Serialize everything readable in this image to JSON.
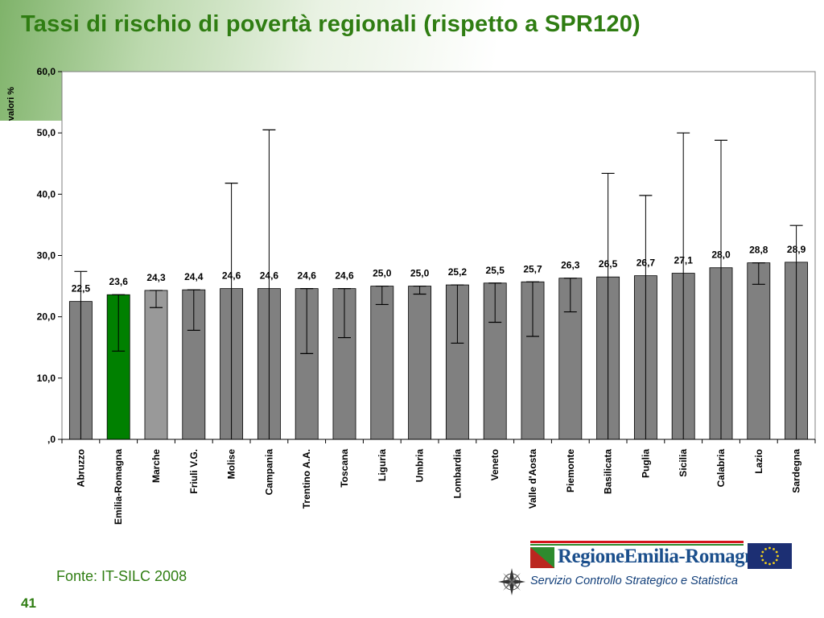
{
  "slide": {
    "title": "Tassi di rischio di povertà regionali (rispetto a SPR120)",
    "source": "Fonte: IT-SILC 2008",
    "page_number": "41",
    "logo_text": "RegioneEmilia-Romagna",
    "service_text": "Servizio Controllo Strategico e Statistica"
  },
  "colors": {
    "bar_default": "#808080",
    "bar_highlight": "#008000",
    "title_green": "#2f7d12"
  },
  "chart_data": {
    "type": "bar",
    "ylabel": "valori %",
    "ylim": [
      0,
      60
    ],
    "yticks": [
      "0",
      "10,0",
      "20,0",
      "30,0",
      "40,0",
      "50,0",
      "60,0"
    ],
    "ytick_labels": [
      ",0",
      "10,0",
      "20,0",
      "30,0",
      "40,0",
      "50,0",
      "60,0"
    ],
    "categories": [
      "Abruzzo",
      "Emilia-Romagna",
      "Marche",
      "Friuli V.G.",
      "Molise",
      "Campania",
      "Trentino A.A.",
      "Toscana",
      "Liguria",
      "Umbria",
      "Lombardia",
      "Veneto",
      "Valle d'Aosta",
      "Piemonte",
      "Basilicata",
      "Puglia",
      "Sicilia",
      "Calabria",
      "Lazio",
      "Sardegna"
    ],
    "values": [
      22.5,
      23.6,
      24.3,
      24.4,
      24.6,
      24.6,
      24.6,
      24.6,
      25.0,
      25.0,
      25.2,
      25.5,
      25.7,
      26.3,
      26.5,
      26.7,
      27.1,
      28.0,
      28.8,
      28.9
    ],
    "value_labels": [
      "22,5",
      "23,6",
      "24,3",
      "24,4",
      "24,6",
      "24,6",
      "24,6",
      "24,6",
      "25,0",
      "25,0",
      "25,2",
      "25,5",
      "25,7",
      "26,3",
      "26,5",
      "26,7",
      "27,1",
      "28,0",
      "28,8",
      "28,9"
    ],
    "error_low": [
      0,
      14.4,
      21.5,
      17.8,
      0,
      0,
      14.0,
      16.6,
      22.0,
      23.7,
      15.7,
      19.1,
      16.8,
      20.8,
      0,
      0,
      0,
      0,
      25.3,
      0
    ],
    "error_high": [
      27.4,
      23.6,
      24.3,
      24.4,
      41.8,
      50.5,
      24.6,
      24.6,
      25.0,
      25.0,
      25.2,
      25.5,
      25.7,
      26.3,
      43.4,
      39.8,
      50.0,
      48.8,
      28.8,
      34.9
    ],
    "highlight_index": 1,
    "grid": false,
    "legend": "none"
  }
}
